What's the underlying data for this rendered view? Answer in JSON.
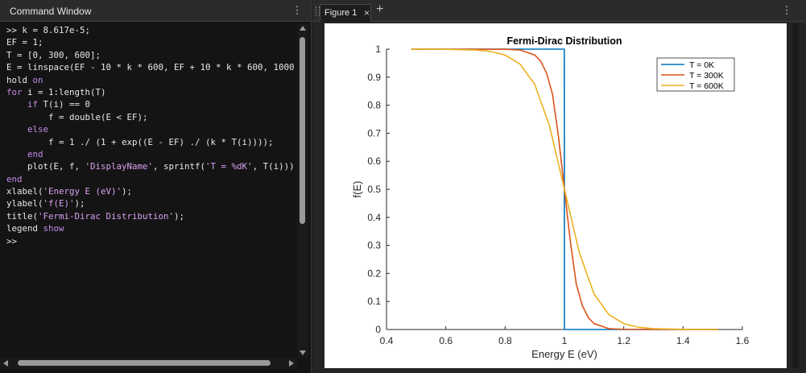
{
  "command_window": {
    "title": "Command Window",
    "menu_icon": "vertical-ellipsis-icon",
    "lines": [
      [
        {
          "t": ">> k = 8.617e-5;",
          "c": "n"
        }
      ],
      [
        {
          "t": "EF = 1;",
          "c": "n"
        }
      ],
      [
        {
          "t": "T = [0, 300, 600];",
          "c": "n"
        }
      ],
      [
        {
          "t": "E = linspace(EF - 10 * k * 600, EF + 10 * k * 600, 1000",
          "c": "n"
        }
      ],
      [
        {
          "t": "hold ",
          "c": "n"
        },
        {
          "t": "on",
          "c": "kw"
        }
      ],
      [
        {
          "t": "for",
          "c": "kw"
        },
        {
          "t": " i = 1:length(T)",
          "c": "n"
        }
      ],
      [
        {
          "t": "    ",
          "c": "n"
        },
        {
          "t": "if",
          "c": "kw"
        },
        {
          "t": " T(i) == 0",
          "c": "n"
        }
      ],
      [
        {
          "t": "        f = double(E < EF);",
          "c": "n"
        }
      ],
      [
        {
          "t": "    ",
          "c": "n"
        },
        {
          "t": "else",
          "c": "kw"
        }
      ],
      [
        {
          "t": "        f = 1 ./ (1 + exp((E - EF) ./ (k * T(i))));",
          "c": "n"
        }
      ],
      [
        {
          "t": "    ",
          "c": "n"
        },
        {
          "t": "end",
          "c": "kw"
        }
      ],
      [
        {
          "t": "    plot(E, f, ",
          "c": "n"
        },
        {
          "t": "'DisplayName'",
          "c": "str"
        },
        {
          "t": ", sprintf(",
          "c": "n"
        },
        {
          "t": "'T = %dK'",
          "c": "str"
        },
        {
          "t": ", T(i)))",
          "c": "n"
        }
      ],
      [
        {
          "t": "end",
          "c": "kw"
        }
      ],
      [
        {
          "t": "xlabel(",
          "c": "n"
        },
        {
          "t": "'Energy E (eV)'",
          "c": "str"
        },
        {
          "t": ");",
          "c": "n"
        }
      ],
      [
        {
          "t": "ylabel(",
          "c": "n"
        },
        {
          "t": "'f(E)'",
          "c": "str"
        },
        {
          "t": ");",
          "c": "n"
        }
      ],
      [
        {
          "t": "title(",
          "c": "n"
        },
        {
          "t": "'Fermi-Dirac Distribution'",
          "c": "str"
        },
        {
          "t": ");",
          "c": "n"
        }
      ],
      [
        {
          "t": "legend ",
          "c": "n"
        },
        {
          "t": "show",
          "c": "kw"
        }
      ],
      [
        {
          "t": ">>",
          "c": "n"
        }
      ]
    ]
  },
  "figure": {
    "tab_label": "Figure 1",
    "tab_close_icon": "close-icon",
    "add_tab_icon": "plus-icon",
    "menu_icon": "vertical-ellipsis-icon"
  },
  "colors": {
    "keyword": "#c389e8",
    "string": "#d9a0f0",
    "series_0K": "#0072BD",
    "series_300K": "#D95319",
    "series_600K": "#EDB120"
  },
  "chart_data": {
    "type": "line",
    "title": "Fermi-Dirac Distribution",
    "xlabel": "Energy E (eV)",
    "ylabel": "f(E)",
    "xlim": [
      0.4,
      1.6
    ],
    "ylim": [
      0,
      1
    ],
    "xticks": [
      "0.4",
      "0.6",
      "0.8",
      "1",
      "1.2",
      "1.4",
      "1.6"
    ],
    "yticks": [
      "0",
      "0.1",
      "0.2",
      "0.3",
      "0.4",
      "0.5",
      "0.6",
      "0.7",
      "0.8",
      "0.9",
      "1"
    ],
    "grid": false,
    "legend_position": "top-right",
    "series": [
      {
        "name": "T = 0K",
        "color": "#0072BD",
        "x": [
          0.483,
          0.9995,
          1.0,
          1.517
        ],
        "y": [
          1,
          1,
          0,
          0
        ]
      },
      {
        "name": "T = 300K",
        "color": "#D95319",
        "x": [
          0.483,
          0.8,
          0.85,
          0.9,
          0.92,
          0.94,
          0.96,
          0.98,
          1.0,
          1.02,
          1.04,
          1.06,
          1.08,
          1.1,
          1.15,
          1.2,
          1.517
        ],
        "y": [
          1,
          0.9996,
          0.997,
          0.979,
          0.957,
          0.914,
          0.838,
          0.687,
          0.5,
          0.313,
          0.162,
          0.086,
          0.043,
          0.021,
          0.003,
          0.0004,
          0
        ]
      },
      {
        "name": "T = 600K",
        "color": "#EDB120",
        "x": [
          0.483,
          0.6,
          0.7,
          0.75,
          0.8,
          0.85,
          0.9,
          0.95,
          1.0,
          1.05,
          1.1,
          1.15,
          1.2,
          1.25,
          1.3,
          1.4,
          1.517
        ],
        "y": [
          1,
          0.9996,
          0.9969,
          0.992,
          0.979,
          0.947,
          0.874,
          0.725,
          0.5,
          0.275,
          0.126,
          0.053,
          0.021,
          0.008,
          0.003,
          0.0004,
          0
        ]
      }
    ]
  }
}
